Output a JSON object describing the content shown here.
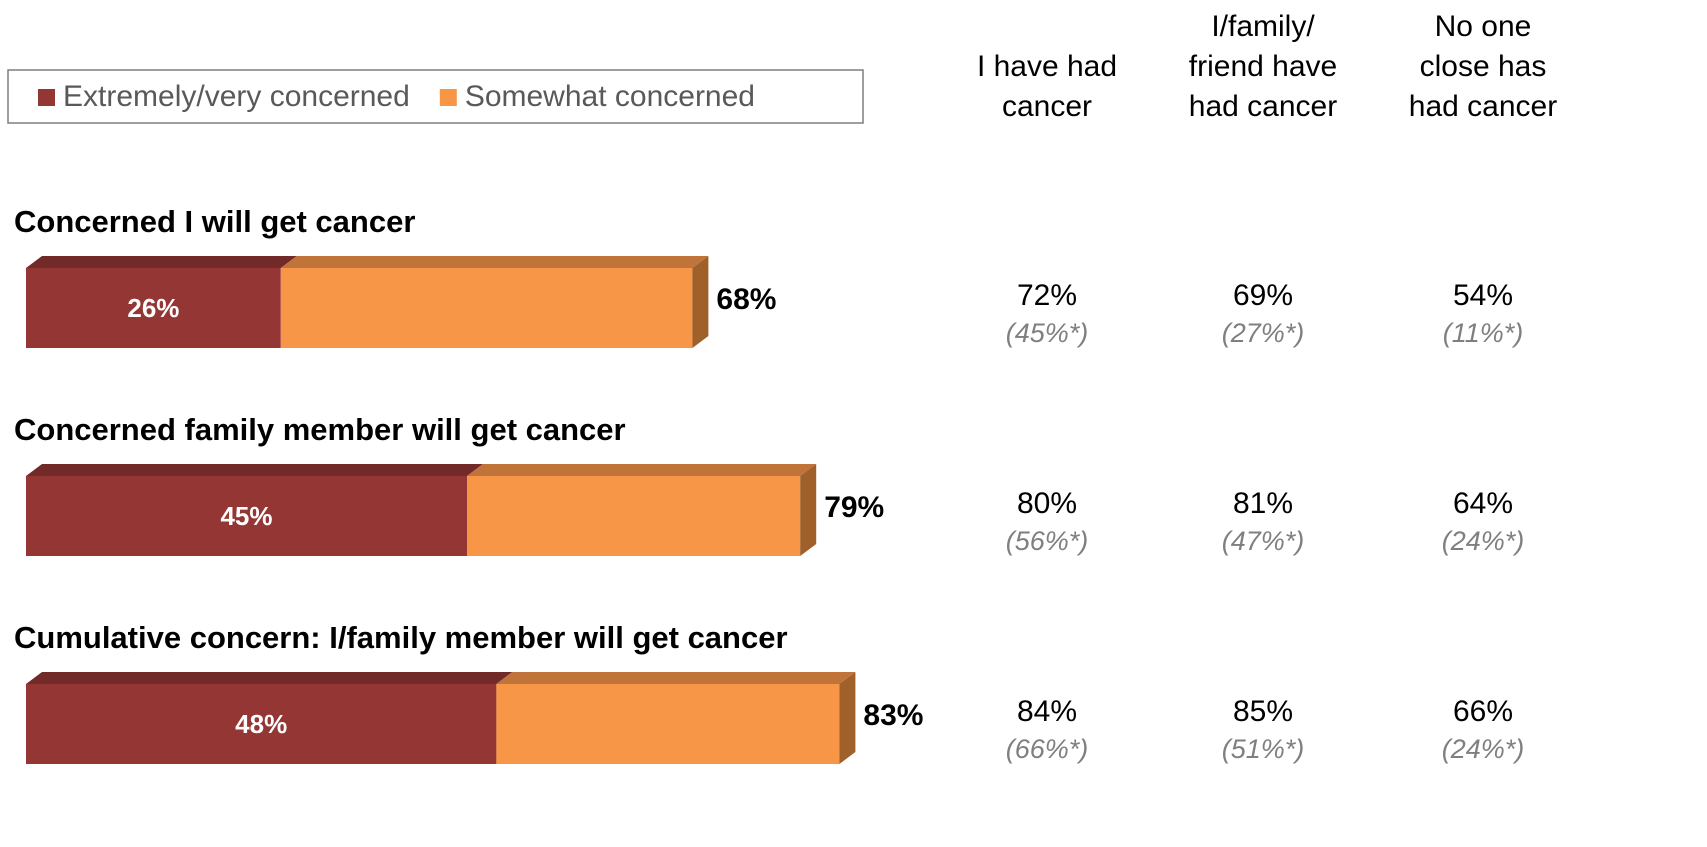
{
  "chart_data": {
    "type": "stacked-bar-3d",
    "legend": "top-left",
    "xlim": [
      0,
      100
    ],
    "categories": [
      "Concerned I will get cancer",
      "Concerned family member will get cancer",
      "Cumulative concern:  I/family member will get cancer"
    ],
    "series": [
      {
        "name": "Extremely/very concerned",
        "color": "#943634",
        "top_color": "#722a28",
        "values": [
          26,
          45,
          48
        ],
        "value_labels": [
          "26%",
          "45%",
          "48%"
        ]
      },
      {
        "name": "Somewhat concerned",
        "color": "#f79646",
        "top_color": "#c0743a",
        "side_color": "#a0602a",
        "values": [
          42,
          34,
          35
        ]
      }
    ],
    "totals": [
      68,
      79,
      83
    ],
    "total_labels": [
      "68%",
      "79%",
      "83%"
    ],
    "table": {
      "columns": [
        [
          "I have had",
          "cancer"
        ],
        [
          "I/family/",
          "friend have",
          "had cancer"
        ],
        [
          "No one",
          "close has",
          "had cancer"
        ]
      ],
      "rows": [
        [
          [
            "72%",
            "(45%*)"
          ],
          [
            "69%",
            "(27%*)"
          ],
          [
            "54%",
            "(11%*)"
          ]
        ],
        [
          [
            "80%",
            "(56%*)"
          ],
          [
            "81%",
            "(47%*)"
          ],
          [
            "64%",
            "(24%*)"
          ]
        ],
        [
          [
            "84%",
            "(66%*)"
          ],
          [
            "85%",
            "(51%*)"
          ],
          [
            "66%",
            "(24%*)"
          ]
        ]
      ]
    }
  }
}
